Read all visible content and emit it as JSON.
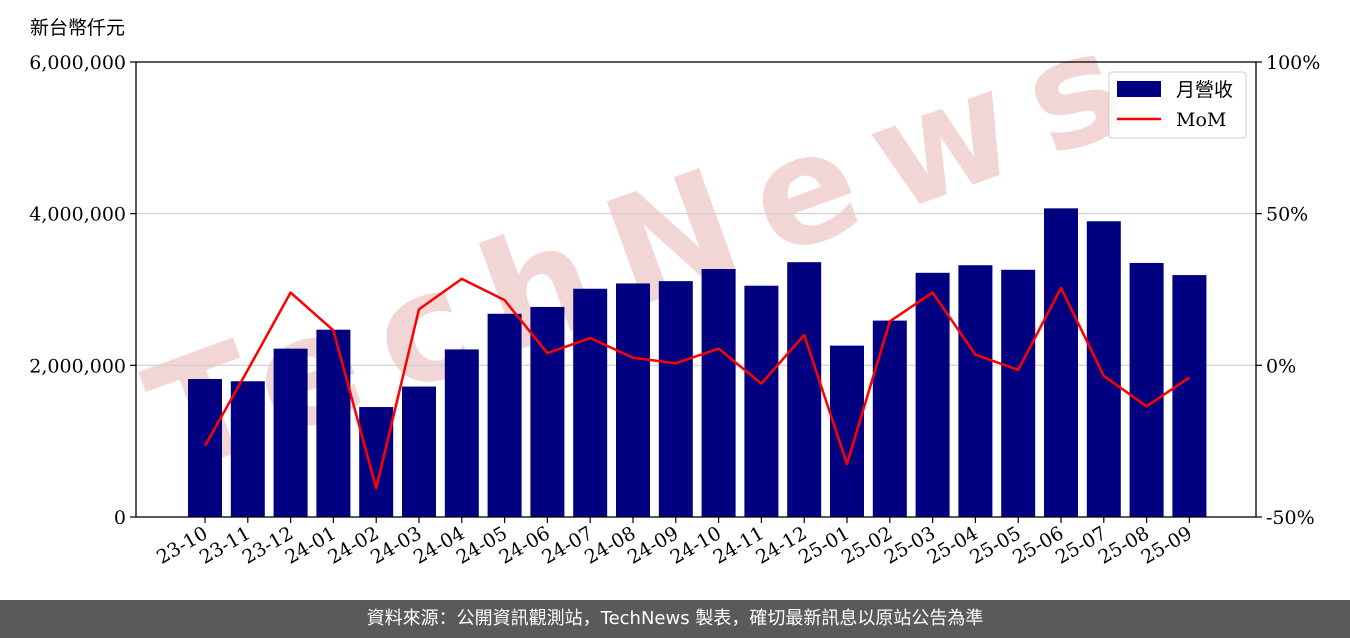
{
  "chart_data": {
    "type": "bar",
    "y_unit_label": "新台幣仟元",
    "categories": [
      "23-10",
      "23-11",
      "23-12",
      "24-01",
      "24-02",
      "24-03",
      "24-04",
      "24-05",
      "24-06",
      "24-07",
      "24-08",
      "24-09",
      "24-10",
      "24-11",
      "24-12",
      "25-01",
      "25-02",
      "25-03",
      "25-04",
      "25-05",
      "25-06",
      "25-07",
      "25-08",
      "25-09"
    ],
    "series": [
      {
        "name": "月營收",
        "kind": "bar",
        "axis": "left",
        "color": "#000080",
        "values": [
          1820000,
          1790000,
          2220000,
          2470000,
          1450000,
          1720000,
          2210000,
          2680000,
          2770000,
          3010000,
          3080000,
          3110000,
          3270000,
          3050000,
          3360000,
          2260000,
          2590000,
          3220000,
          3320000,
          3260000,
          4070000,
          3900000,
          3350000,
          3190000
        ]
      },
      {
        "name": "MoM",
        "kind": "line",
        "axis": "right",
        "color": "#ff0000",
        "values": [
          -26.5,
          -1.5,
          24,
          11.5,
          -40.5,
          18.5,
          28.5,
          21.5,
          4,
          9,
          2.5,
          0.7,
          5.5,
          -6,
          10,
          -32.5,
          14.5,
          24,
          3.5,
          -1.5,
          25.5,
          -3.5,
          -13.5,
          -4
        ]
      }
    ],
    "y_left": {
      "min": 0,
      "max": 6000000,
      "ticks": [
        0,
        2000000,
        4000000,
        6000000
      ],
      "tick_labels": [
        "0",
        "2,000,000",
        "4,000,000",
        "6,000,000"
      ]
    },
    "y_right": {
      "min": -50,
      "max": 100,
      "ticks": [
        -50,
        0,
        50,
        100
      ],
      "tick_labels": [
        "-50%",
        "0%",
        "50%",
        "100%"
      ]
    },
    "grid": "horizontal",
    "legend_position": "top-right"
  },
  "watermark": "TechNews",
  "footer": "資料來源：公開資訊觀測站，TechNews 製表，確切最新訊息以原站公告為準"
}
